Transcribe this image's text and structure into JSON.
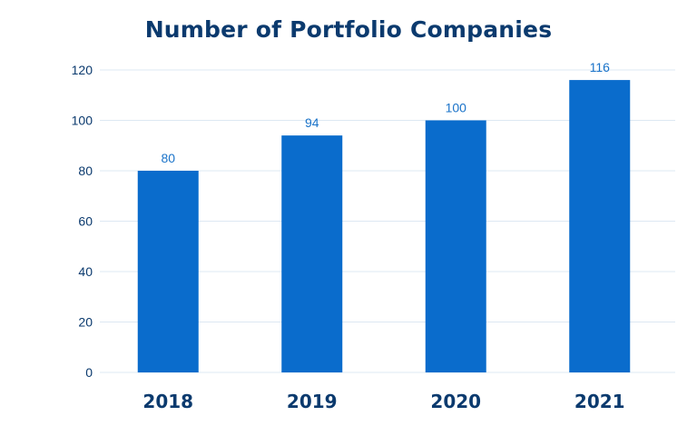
{
  "chart_data": {
    "type": "bar",
    "title": "Number of Portfolio Companies",
    "categories": [
      "2018",
      "2019",
      "2020",
      "2021"
    ],
    "values": [
      80,
      94,
      100,
      116
    ],
    "ylim": [
      0,
      120
    ],
    "yticks": [
      0,
      20,
      40,
      60,
      80,
      100,
      120
    ],
    "grid": true,
    "data_labels": true,
    "xlabel": "",
    "ylabel": "",
    "colors": {
      "bar": "#0a6ccc",
      "title": "#0b3a6e",
      "data_label": "#1a73c9",
      "grid": "#dde8f3"
    }
  }
}
